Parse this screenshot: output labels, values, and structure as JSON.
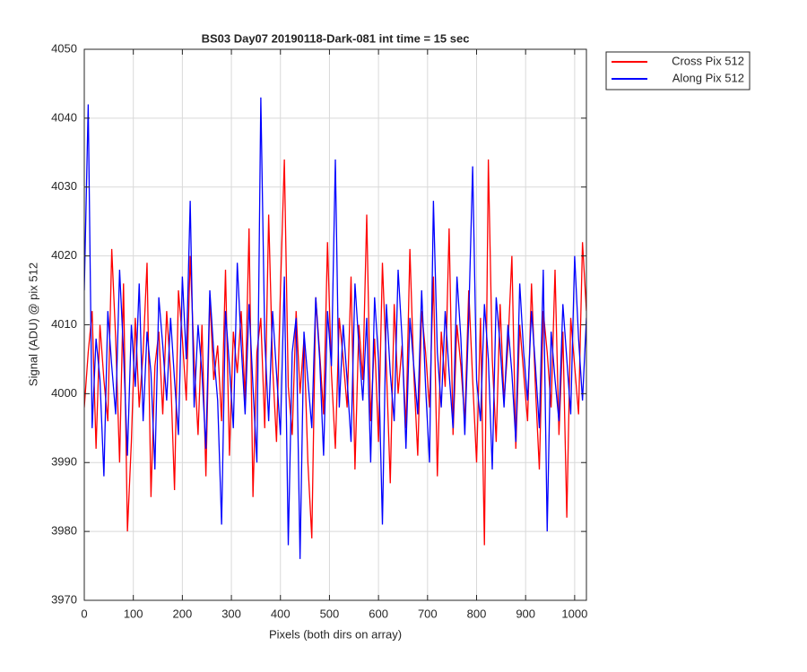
{
  "chart_data": {
    "type": "line",
    "title": "BS03 Day07 20190118-Dark-081 int time = 15 sec",
    "xlabel": "Pixels (both dirs on array)",
    "ylabel": "Signal (ADU) @ pix 512",
    "xlim": [
      0,
      1024
    ],
    "ylim": [
      3970,
      4050
    ],
    "xticks": [
      0,
      100,
      200,
      300,
      400,
      500,
      600,
      700,
      800,
      900,
      1000
    ],
    "yticks": [
      3970,
      3980,
      3990,
      4000,
      4010,
      4020,
      4030,
      4040,
      4050
    ],
    "grid": true,
    "legend": "northeastoutside",
    "x": [
      0,
      8,
      16,
      24,
      32,
      40,
      48,
      56,
      64,
      72,
      80,
      88,
      96,
      104,
      112,
      120,
      128,
      136,
      144,
      152,
      160,
      168,
      176,
      184,
      192,
      200,
      208,
      216,
      224,
      232,
      240,
      248,
      256,
      264,
      272,
      280,
      288,
      296,
      304,
      312,
      320,
      328,
      336,
      344,
      352,
      360,
      368,
      376,
      384,
      392,
      400,
      408,
      416,
      424,
      432,
      440,
      448,
      456,
      464,
      472,
      480,
      488,
      496,
      504,
      512,
      520,
      528,
      536,
      544,
      552,
      560,
      568,
      576,
      584,
      592,
      600,
      608,
      616,
      624,
      632,
      640,
      648,
      656,
      664,
      672,
      680,
      688,
      696,
      704,
      712,
      720,
      728,
      736,
      744,
      752,
      760,
      768,
      776,
      784,
      792,
      800,
      808,
      816,
      824,
      832,
      840,
      848,
      856,
      864,
      872,
      880,
      888,
      896,
      904,
      912,
      920,
      928,
      936,
      944,
      952,
      960,
      968,
      976,
      984,
      992,
      1000,
      1008,
      1016,
      1024
    ],
    "series": [
      {
        "name": "Cross Pix 512",
        "color": "#ff0000",
        "values": [
          3998,
          4006,
          4012,
          3992,
          4010,
          4002,
          3996,
          4021,
          4008,
          3990,
          4016,
          3980,
          3993,
          4011,
          3998,
          4006,
          4019,
          3985,
          4004,
          4009,
          3997,
          4012,
          4003,
          3986,
          4015,
          4008,
          3999,
          4020,
          4005,
          3994,
          4010,
          3988,
          4014,
          4002,
          4007,
          3996,
          4018,
          3991,
          4009,
          4003,
          4012,
          3999,
          4024,
          3985,
          4006,
          4011,
          3995,
          4026,
          4004,
          3993,
          4015,
          4034,
          4001,
          3994,
          4012,
          4000,
          4008,
          3990,
          3979,
          4014,
          4006,
          3997,
          4022,
          4003,
          3992,
          4011,
          4005,
          3998,
          4017,
          3989,
          4010,
          4002,
          4026,
          3996,
          4008,
          3993,
          4019,
          4004,
          3987,
          4013,
          4000,
          4007,
          3995,
          4021,
          4003,
          3991,
          4012,
          4006,
          3998,
          4017,
          3988,
          4009,
          4001,
          4024,
          3994,
          4010,
          4004,
          3996,
          4015,
          4002,
          3990,
          4011,
          3978,
          4034,
          4005,
          3993,
          4013,
          3999,
          4007,
          4020,
          3992,
          4010,
          4003,
          3996,
          4016,
          4001,
          3989,
          4012,
          4006,
          3998,
          4018,
          3994,
          4009,
          3982,
          4011,
          4004,
          3997,
          4022,
          4012
        ]
      },
      {
        "name": "Along Pix 512",
        "color": "#0000ff",
        "values": [
          4015,
          4042,
          3995,
          4008,
          4002,
          3988,
          4012,
          4004,
          3997,
          4018,
          4006,
          3991,
          4010,
          4001,
          4016,
          3996,
          4009,
          4003,
          3989,
          4014,
          4007,
          3999,
          4011,
          4002,
          3994,
          4017,
          4005,
          4028,
          3998,
          4010,
          4003,
          3992,
          4015,
          4006,
          3999,
          3981,
          4012,
          4004,
          3995,
          4019,
          4007,
          3997,
          4013,
          4001,
          3990,
          4043,
          4008,
          3996,
          4012,
          4003,
          3994,
          4017,
          3978,
          4006,
          4011,
          3976,
          4009,
          4002,
          3995,
          4014,
          4005,
          3991,
          4012,
          4004,
          4034,
          3998,
          4010,
          4002,
          3993,
          4016,
          4007,
          3999,
          4011,
          3990,
          4014,
          4005,
          3981,
          4013,
          4003,
          3996,
          4018,
          4008,
          3992,
          4011,
          4004,
          3997,
          4015,
          4001,
          3990,
          4028,
          4006,
          3998,
          4012,
          4003,
          3995,
          4017,
          4008,
          3994,
          4011,
          4033,
          4002,
          3996,
          4013,
          4005,
          3989,
          4014,
          4007,
          3998,
          4010,
          4003,
          3993,
          4016,
          4006,
          3999,
          4012,
          4004,
          3995,
          4018,
          3980,
          4009,
          4002,
          3996,
          4013,
          4005,
          3997,
          4020,
          4008,
          3999,
          4011
        ]
      }
    ]
  }
}
